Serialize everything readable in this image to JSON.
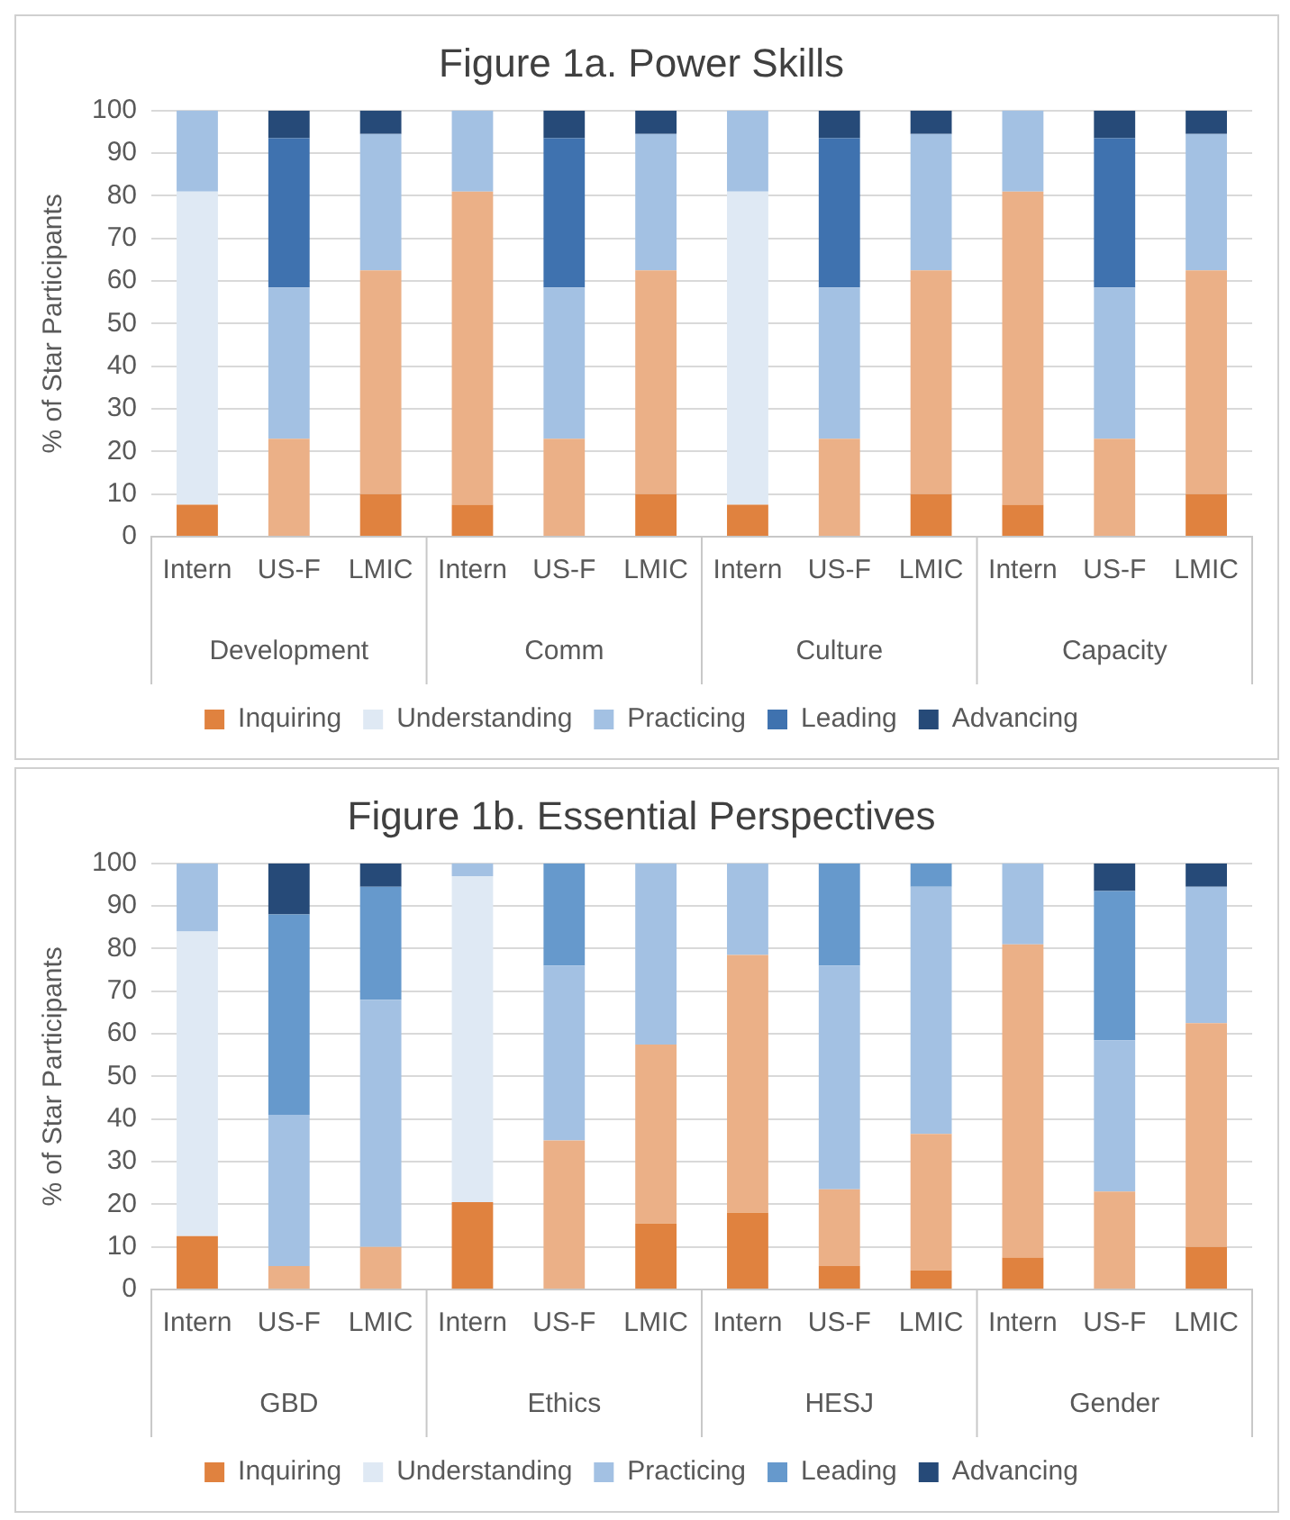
{
  "chart_data": [
    {
      "type": "bar",
      "title": "Figure 1a. Power Skills",
      "ylabel": "% of Star Participants",
      "categories": [
        "Intern",
        "US-F",
        "LMIC",
        "Intern",
        "US-F",
        "LMIC",
        "Intern",
        "US-F",
        "LMIC",
        "Intern",
        "US-F",
        "LMIC"
      ],
      "annotations": [
        "Development",
        "Comm",
        "Culture",
        "Capacity"
      ],
      "stacked": true,
      "ylim": [
        0,
        100
      ],
      "yticks": [
        0,
        10,
        20,
        30,
        40,
        50,
        60,
        70,
        80,
        90,
        100
      ],
      "grid": "y",
      "legend": "bottom",
      "series": [
        {
          "name": "Inquiring",
          "color": "#e0823f",
          "values": [
            7.5,
            0,
            10,
            7.5,
            0,
            10,
            7.5,
            0,
            10,
            7.5,
            0,
            10
          ]
        },
        {
          "name": "Understanding",
          "color": "#dfe9f4",
          "values": [
            73.5,
            23,
            52.5,
            73.5,
            23,
            52.5,
            73.5,
            23,
            52.5,
            73.5,
            23,
            52.5
          ],
          "colors": [
            "#dfe9f4",
            "#ebb087",
            "#ebb087",
            "#ebb087",
            "#ebb087",
            "#ebb087",
            "#dfe9f4",
            "#ebb087",
            "#ebb087",
            "#ebb087",
            "#ebb087",
            "#ebb087"
          ]
        },
        {
          "name": "Practicing",
          "color": "#a3c1e3",
          "values": [
            19,
            35.5,
            32,
            19,
            35.5,
            32,
            19,
            35.5,
            32,
            19,
            35.5,
            32
          ]
        },
        {
          "name": "Leading",
          "color": "#3f72af",
          "values": [
            0,
            35,
            0,
            0,
            35,
            0,
            0,
            35,
            0,
            0,
            35,
            0
          ]
        },
        {
          "name": "Advancing",
          "color": "#264a78",
          "values": [
            0,
            6.5,
            5.5,
            0,
            6.5,
            5.5,
            0,
            6.5,
            5.5,
            0,
            6.5,
            5.5
          ]
        }
      ]
    },
    {
      "type": "bar",
      "title": "Figure 1b. Essential Perspectives",
      "ylabel": "% of Star Participants",
      "categories": [
        "Intern",
        "US-F",
        "LMIC",
        "Intern",
        "US-F",
        "LMIC",
        "Intern",
        "US-F",
        "LMIC",
        "Intern",
        "US-F",
        "LMIC"
      ],
      "annotations": [
        "GBD",
        "Ethics",
        "HESJ",
        "Gender"
      ],
      "stacked": true,
      "ylim": [
        0,
        100
      ],
      "yticks": [
        0,
        10,
        20,
        30,
        40,
        50,
        60,
        70,
        80,
        90,
        100
      ],
      "grid": "y",
      "legend": "bottom",
      "series": [
        {
          "name": "Inquiring",
          "color": "#e0823f",
          "values": [
            12.5,
            0,
            0,
            20.5,
            0,
            15.5,
            18,
            5.5,
            4.5,
            7.5,
            0,
            10
          ]
        },
        {
          "name": "Understanding",
          "color": "#dfe9f4",
          "values": [
            71.5,
            5.5,
            10,
            76.5,
            35,
            42,
            60.5,
            18,
            32,
            73.5,
            23,
            52.5
          ],
          "colors": [
            "#dfe9f4",
            "#ebb087",
            "#ebb087",
            "#dfe9f4",
            "#ebb087",
            "#ebb087",
            "#ebb087",
            "#ebb087",
            "#ebb087",
            "#ebb087",
            "#ebb087",
            "#ebb087"
          ]
        },
        {
          "name": "Practicing",
          "color": "#a3c1e3",
          "values": [
            16,
            35.5,
            58,
            3,
            41,
            42.5,
            21.5,
            52.5,
            58,
            19,
            35.5,
            32
          ]
        },
        {
          "name": "Leading",
          "color": "#6699cc",
          "values": [
            0,
            47,
            26.5,
            0,
            24,
            0,
            0,
            24,
            5.5,
            0,
            35,
            0
          ]
        },
        {
          "name": "Advancing",
          "color": "#264a78",
          "values": [
            0,
            12,
            5.5,
            0,
            0,
            0,
            0,
            0,
            0,
            0,
            6.5,
            5.5
          ]
        }
      ]
    }
  ]
}
